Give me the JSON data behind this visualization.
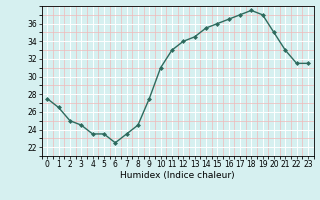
{
  "x": [
    0,
    1,
    2,
    3,
    4,
    5,
    6,
    7,
    8,
    9,
    10,
    11,
    12,
    13,
    14,
    15,
    16,
    17,
    18,
    19,
    20,
    21,
    22,
    23
  ],
  "y": [
    27.5,
    26.5,
    25.0,
    24.5,
    23.5,
    23.5,
    22.5,
    23.5,
    24.5,
    27.5,
    31.0,
    33.0,
    34.0,
    34.5,
    35.5,
    36.0,
    36.5,
    37.0,
    37.5,
    37.0,
    35.0,
    33.0,
    31.5,
    31.5
  ],
  "line_color": "#2e6b5e",
  "marker": "D",
  "marker_size": 2.0,
  "bg_color": "#d6f0f0",
  "grid_color_major": "#ffffff",
  "grid_color_minor": "#f0b8b8",
  "xlabel": "Humidex (Indice chaleur)",
  "ylim": [
    21,
    38
  ],
  "xlim": [
    -0.5,
    23.5
  ],
  "yticks": [
    22,
    24,
    26,
    28,
    30,
    32,
    34,
    36
  ],
  "xticks": [
    0,
    1,
    2,
    3,
    4,
    5,
    6,
    7,
    8,
    9,
    10,
    11,
    12,
    13,
    14,
    15,
    16,
    17,
    18,
    19,
    20,
    21,
    22,
    23
  ],
  "xlabel_fontsize": 6.5,
  "tick_fontsize": 5.5,
  "linewidth": 1.0
}
